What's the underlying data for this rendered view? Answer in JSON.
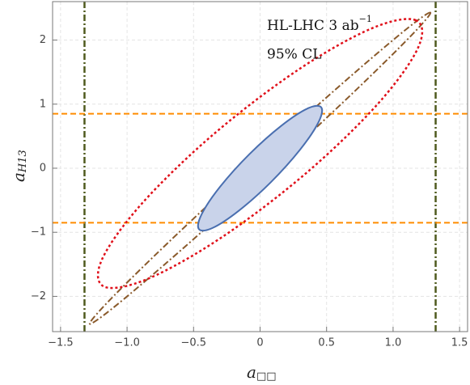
{
  "chart_data": {
    "type": "contour",
    "x_label": {
      "base": "a",
      "subscript": "□□"
    },
    "y_label": {
      "base": "a",
      "subscript": "H13"
    },
    "annotations": [
      {
        "text": "HL-LHC 3 ab",
        "superscript": "−1"
      },
      {
        "text": "95% CL"
      }
    ],
    "xlim": [
      -1.56,
      1.56
    ],
    "ylim": [
      -2.55,
      2.6
    ],
    "xticks": [
      {
        "value": -1.5,
        "label": "−1.5"
      },
      {
        "value": -1.0,
        "label": "−1.0"
      },
      {
        "value": -0.5,
        "label": "−0.5"
      },
      0,
      0.5,
      {
        "value": 1.0,
        "label": "1.0"
      },
      1.5
    ],
    "yticks": [
      {
        "value": -2,
        "label": "−2"
      },
      {
        "value": -1,
        "label": "−1"
      },
      0,
      1,
      2
    ],
    "grid": true,
    "contours": [
      {
        "color": "#8a5a2b",
        "style": "dashdot",
        "fill": null,
        "x": [
          1.28,
          1.078,
          0.588,
          -0.06,
          -0.692,
          -1.138,
          -1.28,
          -1.078,
          -0.588,
          0.06,
          0.692,
          1.138
        ],
        "y": [
          2.43,
          2.134,
          1.267,
          0.06,
          -1.163,
          -2.074,
          -2.43,
          -2.134,
          -1.267,
          -0.06,
          1.163,
          2.074
        ]
      },
      {
        "color": "#e0101a",
        "style": "dotted",
        "fill": null,
        "x": [
          1.17,
          0.838,
          0.282,
          -0.35,
          -0.888,
          -1.188,
          -1.17,
          -0.838,
          -0.282,
          0.35,
          0.888,
          1.188
        ],
        "y": [
          2.31,
          2.181,
          1.53,
          0.53,
          -0.55,
          -1.421,
          -1.85,
          -1.721,
          -1.07,
          -0.07,
          1.01,
          1.881
        ]
      },
      {
        "color": "#4a6fb0",
        "style": "solid",
        "fill": "#c9d3ea",
        "x": [
          0.46,
          0.358,
          0.161,
          -0.08,
          -0.299,
          -0.438,
          -0.46,
          -0.358,
          -0.161,
          0.08,
          0.299,
          0.438
        ],
        "y": [
          0.95,
          0.933,
          0.665,
          0.22,
          -0.285,
          -0.713,
          -0.95,
          -0.933,
          -0.665,
          -0.22,
          0.285,
          0.713
        ]
      }
    ],
    "vlines": {
      "color": "#4f5a1e",
      "style": "dashdot",
      "values": [
        -1.32,
        1.32
      ]
    },
    "hlines": {
      "color": "#ff8c00",
      "style": "dashed",
      "values": [
        -0.85,
        0.85
      ]
    }
  }
}
